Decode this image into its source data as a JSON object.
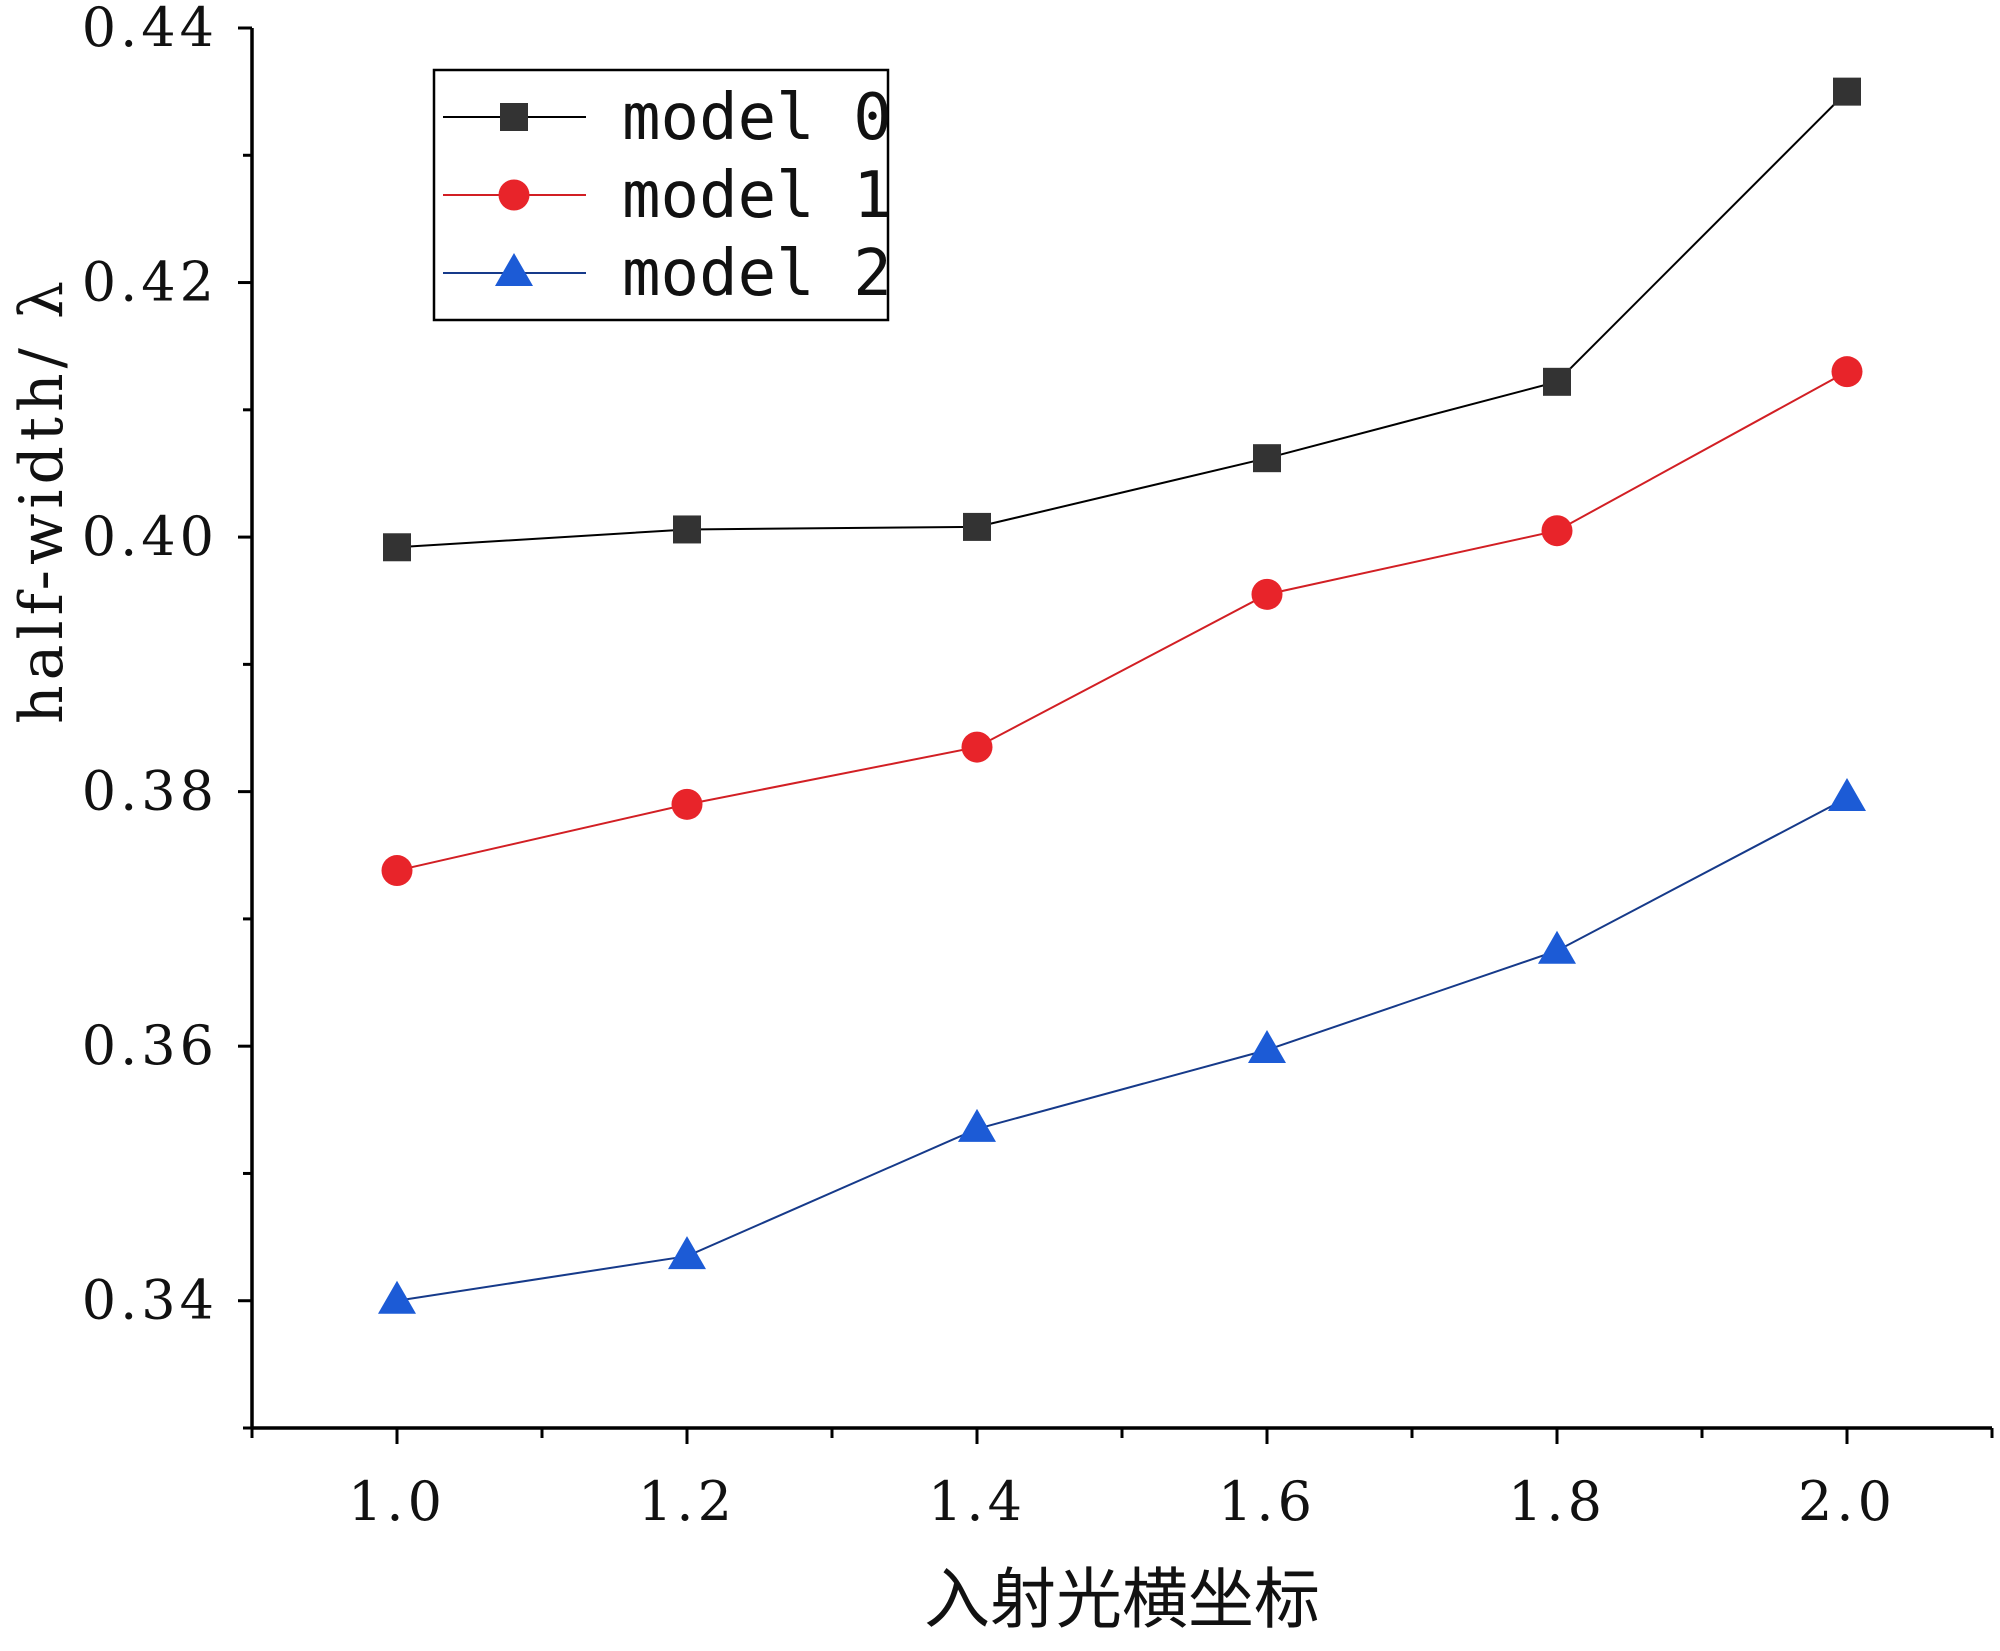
{
  "chart_data": {
    "type": "line",
    "title": "",
    "xlabel": "入射光横坐标",
    "ylabel": "half-width/ λ",
    "x": [
      1.0,
      1.2,
      1.4,
      1.6,
      1.8,
      2.0
    ],
    "xlim": [
      0.9,
      2.1
    ],
    "ylim": [
      0.33,
      0.44
    ],
    "xticks": [
      1.0,
      1.2,
      1.4,
      1.6,
      1.8,
      2.0
    ],
    "xtick_labels": [
      "1.0",
      "1.2",
      "1.4",
      "1.6",
      "1.8",
      "2.0"
    ],
    "yticks": [
      0.34,
      0.36,
      0.38,
      0.4,
      0.42,
      0.44
    ],
    "ytick_labels": [
      "0.34",
      "0.36",
      "0.38",
      "0.40",
      "0.42",
      "0.44"
    ],
    "grid": false,
    "legend_position": "top-left",
    "series": [
      {
        "name": "model 0",
        "color": "#333333",
        "line_color": "#000000",
        "marker": "square",
        "values": [
          0.3992,
          0.4006,
          0.4008,
          0.4062,
          0.4122,
          0.435
        ]
      },
      {
        "name": "model 1",
        "color": "#e8242a",
        "line_color": "#d21f24",
        "marker": "circle",
        "values": [
          0.3738,
          0.379,
          0.3835,
          0.3955,
          0.4005,
          0.413
        ]
      },
      {
        "name": "model 2",
        "color": "#1c5bd6",
        "line_color": "#163a8a",
        "marker": "triangle",
        "values": [
          0.34,
          0.3435,
          0.3535,
          0.3597,
          0.3675,
          0.3795
        ]
      }
    ]
  }
}
